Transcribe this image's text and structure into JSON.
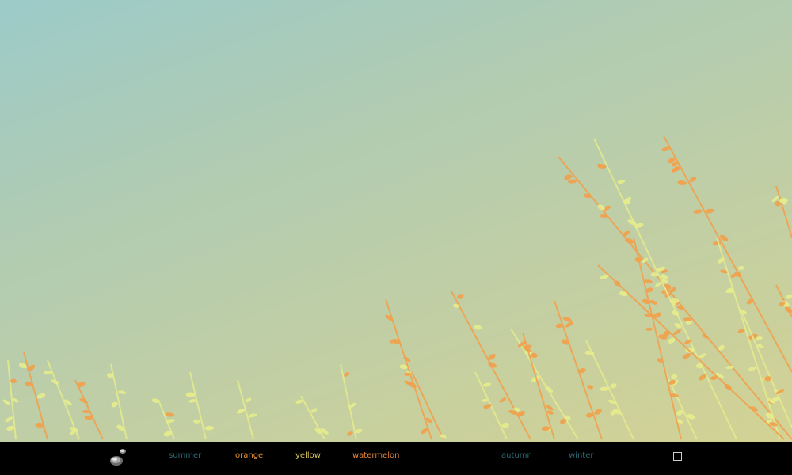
{
  "scene": {
    "description_icon": "grass-meadow",
    "stem_orange": "#f2a04a",
    "stem_yellow": "#e5ec8c"
  },
  "nav": {
    "items": [
      {
        "id": "summer",
        "label": "summer",
        "color": "#2e6a73"
      },
      {
        "id": "orange",
        "label": "orange",
        "color": "#e7903a"
      },
      {
        "id": "yellow",
        "label": "yellow",
        "color": "#d6c25a"
      },
      {
        "id": "watermelon",
        "label": "watermelon",
        "color": "#e2853a"
      },
      {
        "id": "autumn",
        "label": "autumn",
        "color": "#2e6a73"
      },
      {
        "id": "winter",
        "label": "winter",
        "color": "#2e6a73"
      }
    ],
    "logo_icon": "stones-icon",
    "fullscreen_icon": "square-outline-icon"
  }
}
